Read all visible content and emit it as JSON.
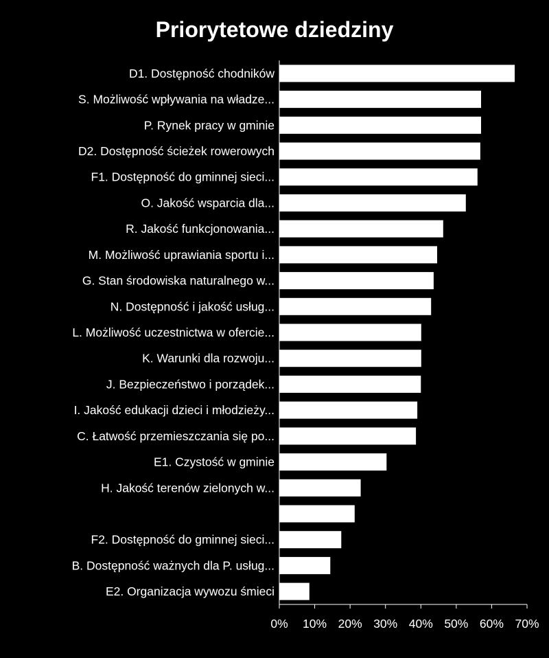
{
  "chart_data": {
    "type": "bar",
    "orientation": "horizontal",
    "title": "Priorytetowe dziedziny",
    "categories": [
      "D1. Dostępność  chodników",
      "S. Możliwość wpływania na władze...",
      "P. Rynek pracy w gminie",
      "D2. Dostępność  ścieżek rowerowych",
      "F1. Dostępność do gminnej sieci...",
      "O. Jakość wsparcia dla...",
      "R. Jakość funkcjonowania...",
      "M. Możliwość uprawiania sportu i...",
      "G. Stan środowiska naturalnego w...",
      "N. Dostępność i jakość usług...",
      "L. Możliwość uczestnictwa w ofercie...",
      "K. Warunki dla rozwoju...",
      "J. Bezpieczeństwo i porządek...",
      "I. Jakość edukacji dzieci i młodzieży...",
      "C. Łatwość przemieszczania się po...",
      "E1. Czystość w gminie",
      "H. Jakość terenów zielonych w...",
      "",
      "F2. Dostępność do gminnej sieci...",
      "B. Dostępność ważnych dla P. usług...",
      "E2. Organizacja wywozu śmieci"
    ],
    "values": [
      66.5,
      57,
      57,
      56.8,
      56,
      52.7,
      46.3,
      44.6,
      43.6,
      42.9,
      40.1,
      40.1,
      40.0,
      39.0,
      38.6,
      30.3,
      23.0,
      21.3,
      17.5,
      14.4,
      8.5
    ],
    "xlim": [
      0,
      70
    ],
    "xticks": [
      "0%",
      "10%",
      "20%",
      "30%",
      "40%",
      "50%",
      "60%",
      "70%"
    ],
    "xlabel": "",
    "ylabel": "",
    "grid": false,
    "legend": "none",
    "colors": {
      "background": "#000000",
      "bar": "#ffffff",
      "text": "#ffffff",
      "axis": "#ffffff"
    }
  }
}
